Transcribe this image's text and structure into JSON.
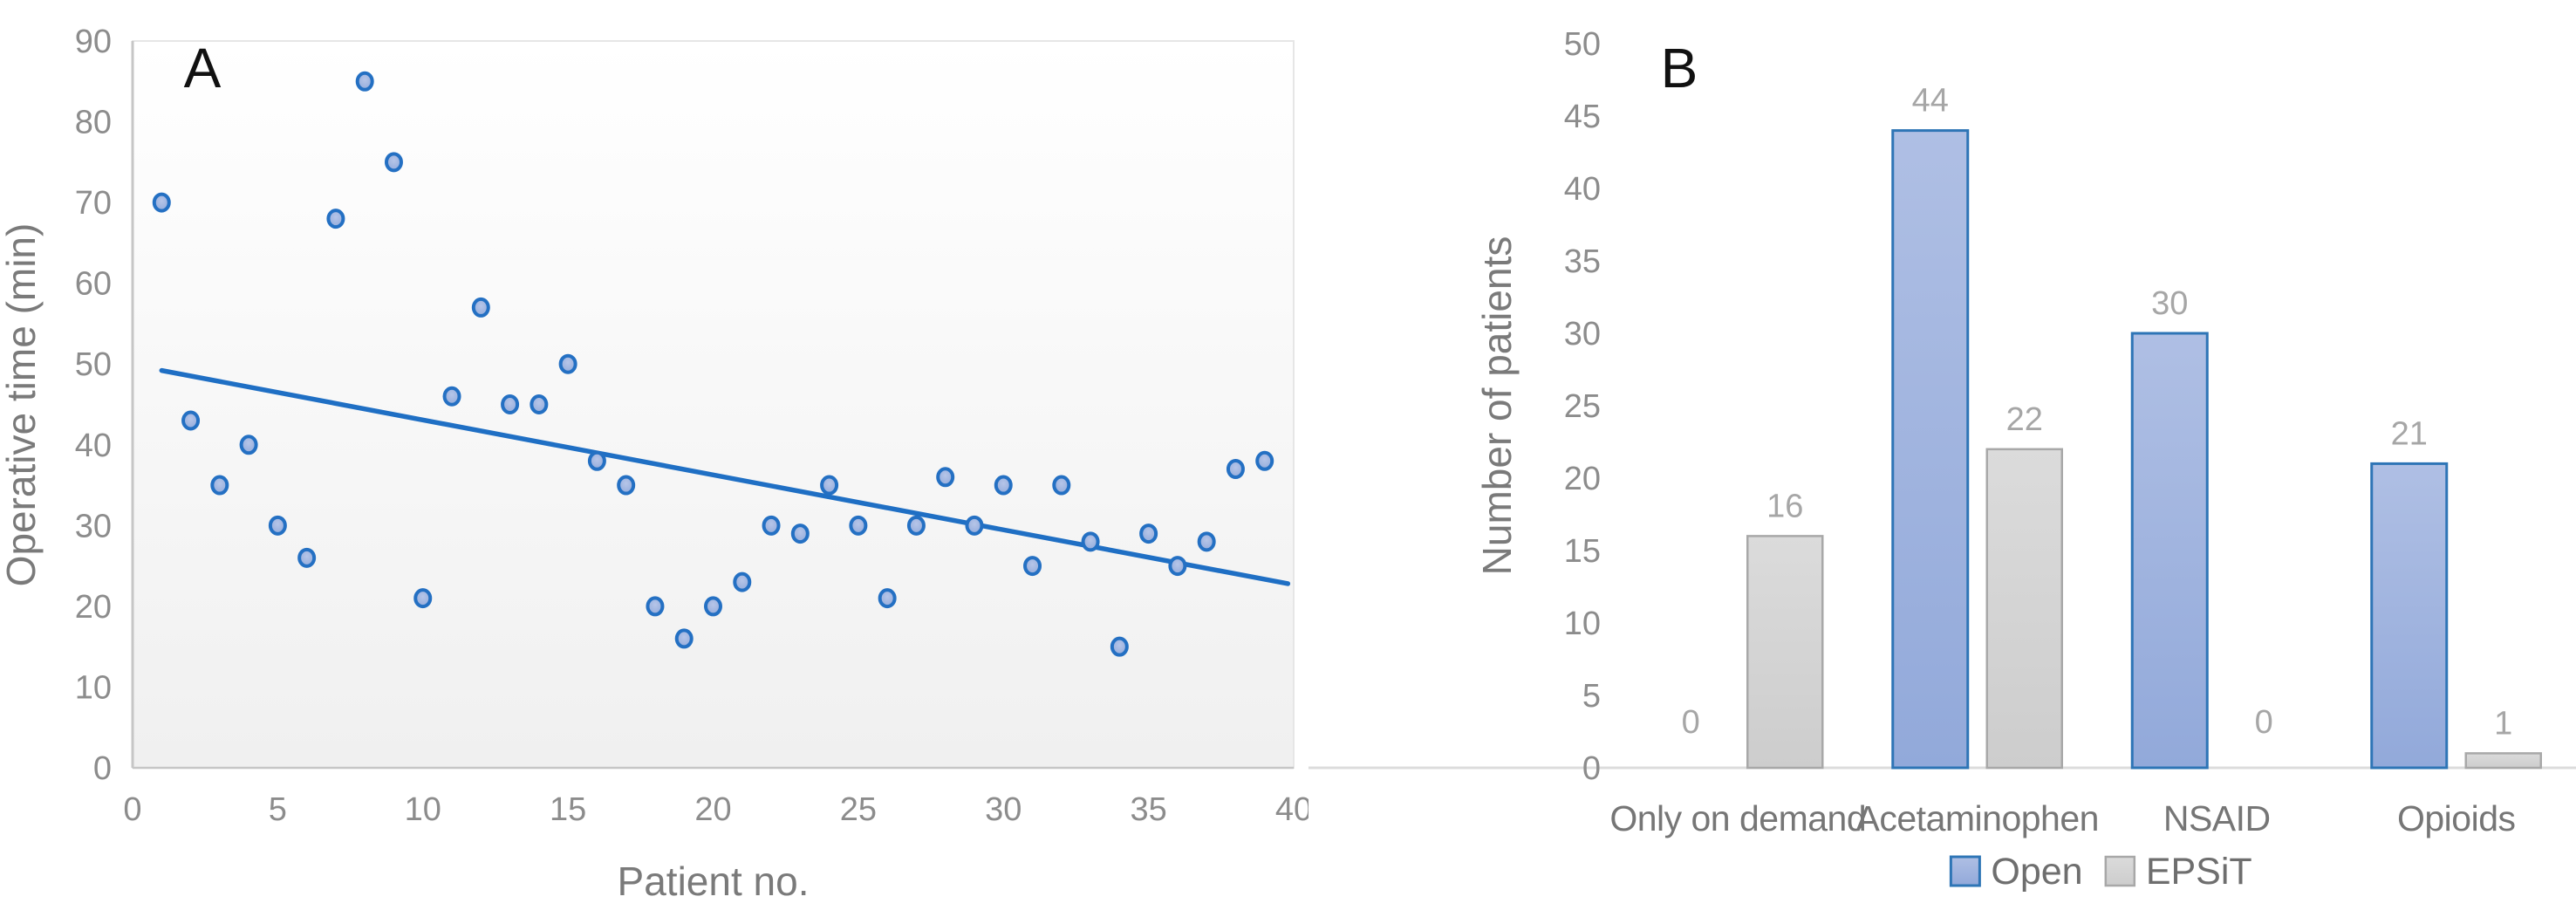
{
  "figure_title": "",
  "colors": {
    "open_fill_top": "#AFBFE4",
    "open_fill_bottom": "#92A9DA",
    "open_border": "#2E75B6",
    "epsit_fill_top": "#DBDBDB",
    "epsit_fill_bottom": "#CDCDCD",
    "epsit_border": "#A8A8A8",
    "marker_fill_center": "#B6C5E8",
    "marker_fill_edge": "#8CA6D9",
    "marker_border": "#2470C3",
    "trendline": "#1F6FC4",
    "axis_line_dark": "#C6C6C6",
    "plot_border_light": "#E6E6E6",
    "plot_bg_top": "#FFFFFF",
    "plot_bg_bottom": "#F0F0F0",
    "tick_label": "#8C8C8C",
    "axis_title": "#7A7A7A",
    "value_label": "#A6A6A6",
    "category_label": "#767676",
    "legend_text": "#6E6E6E",
    "panel_label": "#111111"
  },
  "chart_data": [
    {
      "type": "scatter",
      "panel_label": "A",
      "title": "",
      "xlabel": "Patient no.",
      "ylabel": "Operative time (min)",
      "xlim": [
        0,
        40
      ],
      "ylim": [
        0,
        90
      ],
      "xticks": [
        0,
        5,
        10,
        15,
        20,
        25,
        30,
        35,
        40
      ],
      "yticks": [
        0,
        10,
        20,
        30,
        40,
        50,
        60,
        70,
        80,
        90
      ],
      "grid": false,
      "x": [
        1,
        2,
        3,
        4,
        5,
        6,
        7,
        8,
        9,
        10,
        11,
        12,
        13,
        14,
        15,
        16,
        17,
        18,
        19,
        20,
        21,
        22,
        23,
        24,
        25,
        26,
        27,
        28,
        29,
        30,
        31,
        32,
        33,
        34,
        35,
        36,
        37,
        38,
        39
      ],
      "y": [
        70,
        43,
        35,
        40,
        30,
        26,
        68,
        85,
        75,
        21,
        46,
        57,
        45,
        45,
        50,
        38,
        35,
        20,
        16,
        20,
        23,
        30,
        29,
        35,
        30,
        21,
        30,
        36,
        30,
        35,
        25,
        35,
        28,
        15,
        29,
        25,
        28,
        37,
        38
      ],
      "trendline": {
        "x_start": 1,
        "y_start": 49.2,
        "x_end": 39.8,
        "y_end": 22.8
      }
    },
    {
      "type": "bar",
      "panel_label": "B",
      "title": "",
      "xlabel": "",
      "ylabel": "Number of patients",
      "ylim": [
        0,
        50
      ],
      "yticks": [
        0,
        5,
        10,
        15,
        20,
        25,
        30,
        35,
        40,
        45,
        50
      ],
      "grid": false,
      "legend_position": "bottom",
      "bar_labels": true,
      "categories": [
        "Only on demand",
        "Acetaminophen",
        "NSAID",
        "Opioids"
      ],
      "series": [
        {
          "name": "Open",
          "values": [
            0,
            44,
            30,
            21
          ]
        },
        {
          "name": "EPSiT",
          "values": [
            16,
            22,
            0,
            1
          ]
        }
      ]
    }
  ]
}
